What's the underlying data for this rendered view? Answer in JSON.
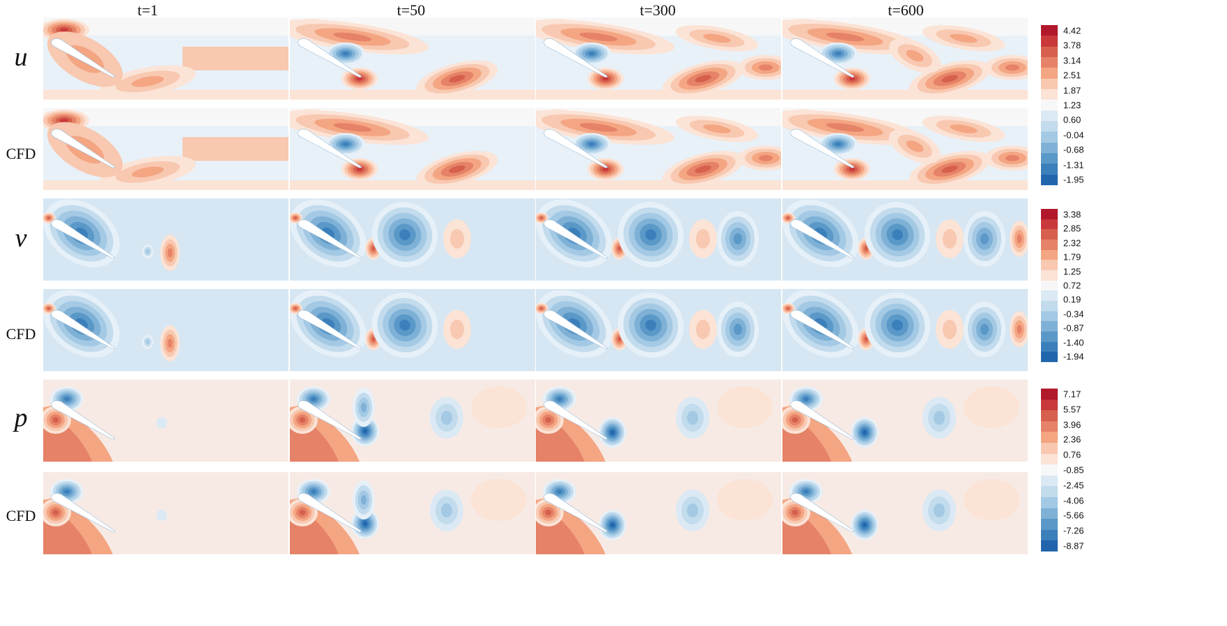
{
  "time_labels": [
    "t=1",
    "t=50",
    "t=300",
    "t=600"
  ],
  "row_labels": [
    "u",
    "CFD",
    "v",
    "CFD",
    "p",
    "CFD"
  ],
  "fields": [
    {
      "name": "u",
      "ticks": [
        "4.42",
        "3.78",
        "3.14",
        "2.51",
        "1.87",
        "1.23",
        "0.60",
        "-0.04",
        "-0.68",
        "-1.31",
        "-1.95"
      ],
      "colors": [
        "#b2182b",
        "#c9383a",
        "#d6604d",
        "#e58267",
        "#f4a582",
        "#f8c8b0",
        "#fbe3d6",
        "#f7f7f7",
        "#dbe9f4",
        "#c2dbed",
        "#a3c9e4",
        "#7fb1d6",
        "#5a98c8",
        "#3b7fbb",
        "#2166ac"
      ]
    },
    {
      "name": "v",
      "ticks": [
        "3.38",
        "2.85",
        "2.32",
        "1.79",
        "1.25",
        "0.72",
        "0.19",
        "-0.34",
        "-0.87",
        "-1.40",
        "-1.94"
      ],
      "colors": [
        "#b2182b",
        "#c9383a",
        "#d6604d",
        "#e58267",
        "#f4a582",
        "#f8c8b0",
        "#fbe3d6",
        "#f7f7f7",
        "#dbe9f4",
        "#c2dbed",
        "#a3c9e4",
        "#7fb1d6",
        "#5a98c8",
        "#3b7fbb",
        "#2166ac"
      ]
    },
    {
      "name": "p",
      "ticks": [
        "7.17",
        "5.57",
        "3.96",
        "2.36",
        "0.76",
        "-0.85",
        "-2.45",
        "-4.06",
        "-5.66",
        "-7.26",
        "-8.87"
      ],
      "colors": [
        "#b2182b",
        "#c9383a",
        "#d6604d",
        "#e58267",
        "#f4a582",
        "#f8c8b0",
        "#fbe3d6",
        "#f7f7f7",
        "#dbe9f4",
        "#c2dbed",
        "#a3c9e4",
        "#7fb1d6",
        "#5a98c8",
        "#3b7fbb",
        "#2166ac"
      ]
    }
  ]
}
